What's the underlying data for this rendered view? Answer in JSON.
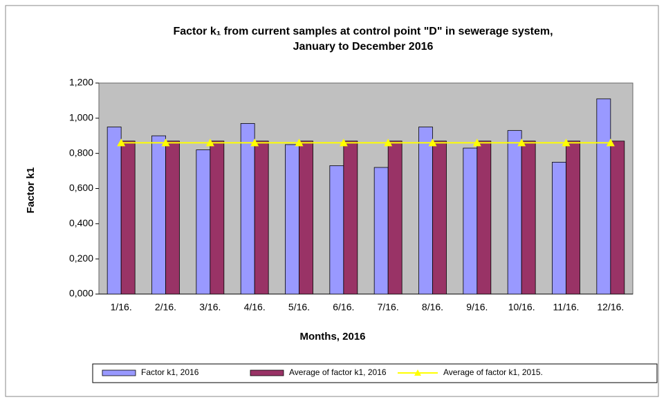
{
  "chart_data": {
    "type": "bar",
    "title": [
      "Factor k₁ from current samples at control point \"D\" in sewerage system,",
      "January to December 2016"
    ],
    "x_label": "Months, 2016",
    "y_label": "Factor k1",
    "categories": [
      "1/16.",
      "2/16.",
      "3/16.",
      "4/16.",
      "5/16.",
      "6/16.",
      "7/16.",
      "8/16.",
      "9/16.",
      "10/16.",
      "11/16.",
      "12/16."
    ],
    "series": [
      {
        "name": "Factor k1, 2016",
        "color": "#9999ff",
        "type": "bar",
        "values": [
          0.95,
          0.9,
          0.82,
          0.97,
          0.85,
          0.73,
          0.72,
          0.95,
          0.83,
          0.93,
          0.75,
          1.11
        ]
      },
      {
        "name": "Average of factor k1, 2016",
        "color": "#993366",
        "type": "bar",
        "values": [
          0.87,
          0.87,
          0.87,
          0.87,
          0.87,
          0.87,
          0.87,
          0.87,
          0.87,
          0.87,
          0.87,
          0.87
        ]
      },
      {
        "name": "Average of factor k1, 2015.",
        "color": "#ffff00",
        "type": "line",
        "values": [
          0.86,
          0.86,
          0.86,
          0.86,
          0.86,
          0.86,
          0.86,
          0.86,
          0.86,
          0.86,
          0.86,
          0.86
        ]
      }
    ],
    "ylim": [
      0,
      1.2
    ],
    "yticks": [
      {
        "value": 0,
        "label": "0,000"
      },
      {
        "value": 0.2,
        "label": "0,200"
      },
      {
        "value": 0.4,
        "label": "0,400"
      },
      {
        "value": 0.6,
        "label": "0,600"
      },
      {
        "value": 0.8,
        "label": "0,800"
      },
      {
        "value": 1.0,
        "label": "1,000"
      },
      {
        "value": 1.2,
        "label": "1,200"
      }
    ],
    "plot_background": "#c0c0c0",
    "legend": "bottom"
  }
}
